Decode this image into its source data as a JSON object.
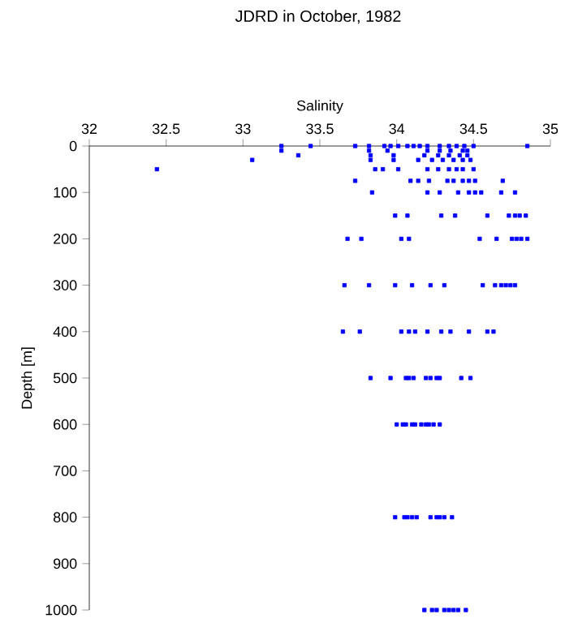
{
  "chart_data": {
    "type": "scatter",
    "title": "JDRD in October, 1982",
    "xlabel": "Salinity",
    "ylabel": "Depth [m]",
    "color": "#0000ff",
    "marker": "square",
    "xlim": [
      32,
      35
    ],
    "ylim": [
      1000,
      0
    ],
    "xticks": [
      32,
      32.5,
      33,
      33.5,
      34,
      34.5,
      35
    ],
    "yticks": [
      0,
      100,
      200,
      300,
      400,
      500,
      600,
      700,
      800,
      900,
      1000
    ],
    "x": [
      33.25,
      33.44,
      33.73,
      33.82,
      33.92,
      33.96,
      34.01,
      34.07,
      34.11,
      34.15,
      34.2,
      34.28,
      34.34,
      34.39,
      34.44,
      34.5,
      34.85,
      33.25,
      33.82,
      33.94,
      34.2,
      34.28,
      34.35,
      34.43,
      34.46,
      33.36,
      33.83,
      33.98,
      34.18,
      34.27,
      34.34,
      34.41,
      34.46,
      33.06,
      33.83,
      33.98,
      34.14,
      34.23,
      34.3,
      34.37,
      34.43,
      34.48,
      32.44,
      33.86,
      33.91,
      34.01,
      34.2,
      34.27,
      34.34,
      34.39,
      34.43,
      34.5,
      33.73,
      34.09,
      34.14,
      34.21,
      34.33,
      34.37,
      34.43,
      34.47,
      34.51,
      34.69,
      33.84,
      34.2,
      34.28,
      34.4,
      34.47,
      34.51,
      34.55,
      34.68,
      34.77,
      33.99,
      34.07,
      34.29,
      34.38,
      34.59,
      34.73,
      34.77,
      34.8,
      34.84,
      33.68,
      33.77,
      34.03,
      34.08,
      34.54,
      34.65,
      34.75,
      34.78,
      34.81,
      34.85,
      33.66,
      33.82,
      33.99,
      34.1,
      34.22,
      34.31,
      34.56,
      34.64,
      34.68,
      34.71,
      34.74,
      34.77,
      33.65,
      33.76,
      34.03,
      34.08,
      34.12,
      34.2,
      34.29,
      34.35,
      34.47,
      34.59,
      34.63,
      33.83,
      33.96,
      34.06,
      34.08,
      34.11,
      34.19,
      34.22,
      34.26,
      34.28,
      34.42,
      34.48,
      34.0,
      34.04,
      34.06,
      34.1,
      34.12,
      34.16,
      34.19,
      34.21,
      34.24,
      34.28,
      33.99,
      34.05,
      34.07,
      34.1,
      34.13,
      34.22,
      34.26,
      34.28,
      34.31,
      34.36,
      34.18,
      34.23,
      34.26,
      34.31,
      34.34,
      34.37,
      34.4,
      34.45
    ],
    "values": [
      0,
      0,
      0,
      0,
      0,
      0,
      0,
      0,
      0,
      0,
      0,
      0,
      0,
      0,
      0,
      0,
      0,
      10,
      10,
      10,
      10,
      10,
      10,
      10,
      10,
      20,
      20,
      20,
      20,
      20,
      20,
      20,
      20,
      30,
      30,
      30,
      30,
      30,
      30,
      30,
      30,
      30,
      50,
      50,
      50,
      50,
      50,
      50,
      50,
      50,
      50,
      50,
      75,
      75,
      75,
      75,
      75,
      75,
      75,
      75,
      75,
      75,
      100,
      100,
      100,
      100,
      100,
      100,
      100,
      100,
      100,
      150,
      150,
      150,
      150,
      150,
      150,
      150,
      150,
      150,
      200,
      200,
      200,
      200,
      200,
      200,
      200,
      200,
      200,
      200,
      300,
      300,
      300,
      300,
      300,
      300,
      300,
      300,
      300,
      300,
      300,
      300,
      400,
      400,
      400,
      400,
      400,
      400,
      400,
      400,
      400,
      400,
      400,
      500,
      500,
      500,
      500,
      500,
      500,
      500,
      500,
      500,
      500,
      500,
      600,
      600,
      600,
      600,
      600,
      600,
      600,
      600,
      600,
      600,
      800,
      800,
      800,
      800,
      800,
      800,
      800,
      800,
      800,
      800,
      1000,
      1000,
      1000,
      1000,
      1000,
      1000,
      1000,
      1000
    ]
  }
}
